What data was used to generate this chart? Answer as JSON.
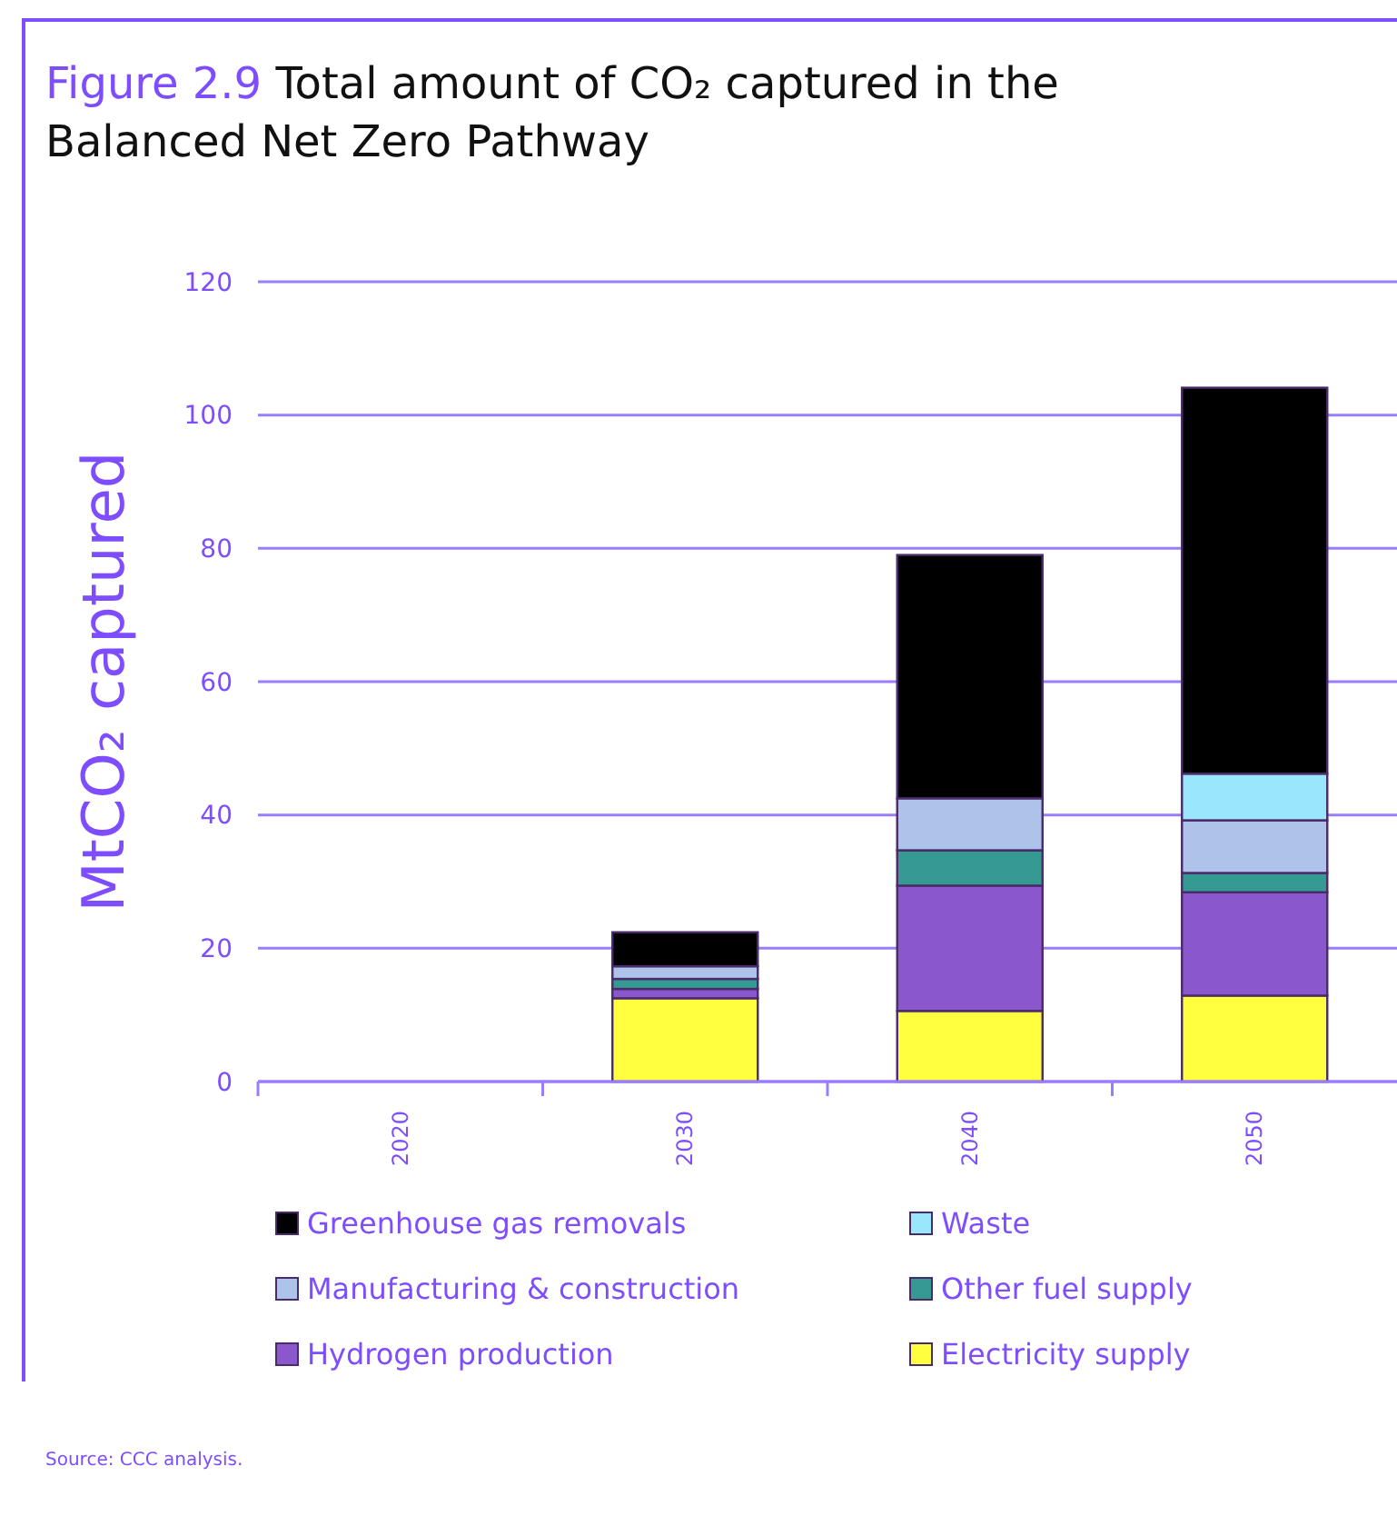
{
  "chart_data": {
    "type": "bar",
    "title": "Figure 2.9 Total amount of CO₂ captured in the Balanced Net Zero Pathway",
    "ylabel": "MtCO₂ captured",
    "categories": [
      "2020",
      "2030",
      "2040",
      "2050"
    ],
    "stacked": true,
    "series": [
      {
        "name": "Electricity supply",
        "color": "#ffff40",
        "values": [
          0,
          12.5,
          10.6,
          12.9
        ]
      },
      {
        "name": "Hydrogen production",
        "color": "#8b57cc",
        "values": [
          0,
          1.4,
          18.8,
          15.5
        ]
      },
      {
        "name": "Other fuel supply",
        "color": "#359a92",
        "values": [
          0,
          1.5,
          5.3,
          2.9
        ]
      },
      {
        "name": "Manufacturing & construction",
        "color": "#adc3ea",
        "values": [
          0,
          1.9,
          7.8,
          7.9
        ]
      },
      {
        "name": "Waste",
        "color": "#99e6fd",
        "values": [
          0,
          0,
          0,
          7.0
        ]
      },
      {
        "name": "Greenhouse gas removals",
        "color": "#000000",
        "values": [
          0,
          5.1,
          36.5,
          57.9
        ]
      }
    ],
    "ylim": [
      0,
      120
    ],
    "yticks": [
      0,
      20,
      40,
      60,
      80,
      100,
      120
    ],
    "grid": "y",
    "legend": "bottom",
    "annotations": [
      "Source: CCC analysis."
    ]
  }
}
